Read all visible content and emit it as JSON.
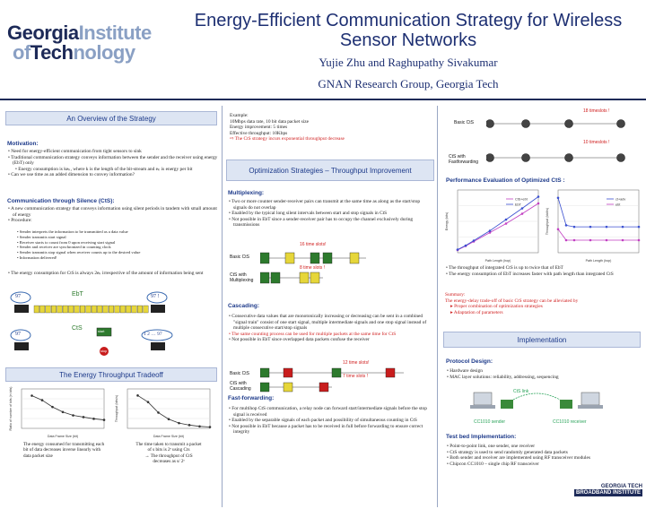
{
  "header": {
    "logo_line1": [
      "Georgia",
      "Institute"
    ],
    "logo_line2": [
      "of",
      "Tech",
      "nology"
    ],
    "title": "Energy-Efficient Communication Strategy for Wireless Sensor Networks",
    "authors": "Yujie Zhu and Raghupathy Sivakumar",
    "group": "GNAN Research Group, Georgia Tech"
  },
  "left": {
    "overview_banner": "An Overview of the Strategy",
    "motivation_heading": "Motivation:",
    "motivation_items": [
      "Need for energy-efficient communication from tight sensors to sink",
      "Traditional communication strategy conveys information between the sender and the receiver using energy (EbT) only",
      "Energy consumption is keₖ, where k is the length of the bit-stream and eₖ is energy per bit",
      "Can we use time as an added dimension to convey information?"
    ],
    "cts_heading": "Communication through Silence (CtS):",
    "cts_items": [
      "A new communication strategy that conveys information using silent periods in tandem with small amount of energy",
      "Procedure:"
    ],
    "procedure_items": [
      "Sender interprets the information to be transmitted as a data value",
      "Sender transmits start signal",
      "Receiver starts to count from 0 upon receiving start signal",
      "Sender and receiver are synchronized in counting clock",
      "Sender transmits stop signal when receiver counts up to the desired value",
      "Information delivered!"
    ],
    "cts_energy": "The energy consumption for CtS is always 2eₖ irrespective of the amount of information being sent",
    "diagram": {
      "node_value": "97",
      "node_value_out": "97 !",
      "ebt_label": "EbT",
      "cts_label": "CtS",
      "count_label": "1 2 … 97",
      "start_label": "start",
      "stop_label": "stop"
    },
    "tradeoff_banner": "The Energy Throughput Tradeoff",
    "chart1_xlabel": "Data Frame Size (bit)",
    "chart1_ylabel": "Ratio of number of bits (in bits)",
    "chart2_xlabel": "Data Frame Size (bit)",
    "chart2_ylabel": "Throughput (bits/s)",
    "caption1": "The energy consumed for transmitting each bit of data decreases inverse linearly with data packet size",
    "caption2_lines": [
      "The time taken to transmit a packet",
      "of s bits is 2ˢ using Cts",
      "→ The throughput of CtS",
      "decreases as s/ 2ˢ"
    ]
  },
  "middle": {
    "example_lines": [
      "Example:",
      "10Mbps data rate, 10 bit data packet size",
      "Energy improvement: 5 times",
      "Effective throughput: 10Kbps"
    ],
    "example_warning": "The CtS strategy incurs exponential throughput decrease",
    "optim_banner": "Optimization Strategies – Throughput Improvement",
    "multiplexing_heading": "Multiplexing:",
    "multiplexing_items": [
      "Two or more counter sender-receiver pairs can transmit at the same time as along as the start/stop signals do not overlap",
      "Enabled by the typical long silent intervals between start and stop signals in CtS",
      "Not possible in EbT since a sender-receiver pair has to occupy the channel exclusively during transmissions"
    ],
    "mux_top_label": "16 time slots!",
    "mux_bottom_label": "8 time slots !",
    "mux_row1": "Basic CtS",
    "mux_row2": "CtS with Multiplexing",
    "cascading_heading": "Cascading:",
    "cascading_items": [
      "Consecutive data values that are monotonically increasing or decreasing can be sent in a combined \"signal train\" consist of one start signal, multiple intermediate signals and one stop signal instead of multiple consecutive start/stop signals",
      "The same counting process can be used for multiple packets at the same time for CtS",
      "Not possible in EbT since overlapped data packets confuse the receiver"
    ],
    "casc_top_label": "12 time slots!",
    "casc_bottom_label": "7 time slots !",
    "casc_row1": "Basic CtS",
    "casc_row2": "CtS with Cascading",
    "fastfwd_heading": "Fast-forwarding:",
    "fastfwd_items": [
      "For multihop CtS communication, a relay node can forward start/intermediate signals before the stop signal is received",
      "Enabled by the separable signals of each packet and possibility of simultaneous counting in CtS",
      "Not possible in EbT because a packet has to be received in full before forwarding to ensure correct integrity"
    ]
  },
  "right": {
    "ff_top_label": "18 timeslots !",
    "ff_mid_label": "10 timeslots !",
    "ff_row1": "Basic CtS",
    "ff_row2": "CtS with Fastforwarding",
    "perf_heading": "Performance Evaluation of Optimized CtS :",
    "perf_chart1_xlabel": "Path Length (hop)",
    "perf_chart1_ylabel": "Energy (bits)",
    "perf_chart2_xlabel": "Path Length (hop)",
    "perf_chart2_ylabel": "Throughput (kbit/s)",
    "perf_legend1": [
      "CtS+ebt",
      "EbT"
    ],
    "perf_legend2": [
      "ct+adv",
      "ebt"
    ],
    "perf_items": [
      "The throughput of integrated CtS is up to twice that of EbT",
      "The energy consumption of EbT increases faster with path length than integrated CtS"
    ],
    "summary_lines": [
      "Summary:",
      "The energy-delay trade-off of basic CtS strategy can be alleviated by"
    ],
    "summary_items": [
      "Proper combination of optimization strategies",
      "Adaptation of parameters"
    ],
    "impl_banner": "Implementation",
    "protocol_heading": "Protocol Design:",
    "protocol_items": [
      "Hardware design",
      "MAC layer solutions: reliability, addressing, sequencing"
    ],
    "testbed_label_link": "CtS link",
    "testbed_sender": "CC1010 sender",
    "testbed_receiver": "CC1010 receiver",
    "testbed_heading": "Test bed Implementation:",
    "testbed_items": [
      "Point-to-point link, one sender, one receiver",
      "CtS strategy is used to send randomly generated data packets",
      "Both sender and receiver are implemented using RF transceiver modules",
      "Chipcon CC1010 – single chip RF transceiver"
    ],
    "footer_logo": [
      "GEORGIA TECH",
      "BROADBAND INSTITUTE"
    ]
  },
  "chart_data": [
    {
      "type": "line",
      "title": "",
      "xlabel": "Data Frame Size (bit)",
      "ylabel": "Ratio of number of bits (in bits)",
      "x": [
        2,
        4,
        6,
        8,
        10,
        12,
        14,
        16
      ],
      "series": [
        {
          "values": [
            0.58,
            0.5,
            0.38,
            0.29,
            0.23,
            0.2,
            0.17,
            0.15
          ]
        }
      ],
      "ylim": [
        0,
        0.7
      ],
      "xlim": [
        0,
        16
      ]
    },
    {
      "type": "line",
      "title": "",
      "xlabel": "Data Frame Size (bit)",
      "ylabel": "Throughput (bits/s)",
      "x": [
        2,
        4,
        6,
        8,
        10,
        12,
        14,
        16
      ],
      "series": [
        {
          "values": [
            0.25,
            0.2,
            0.12,
            0.07,
            0.04,
            0.025,
            0.015,
            0.01
          ]
        }
      ],
      "ylim": [
        0,
        0.3
      ],
      "xlim": [
        0,
        16
      ]
    },
    {
      "type": "line",
      "title": "",
      "xlabel": "Path Length (hop)",
      "ylabel": "Energy (bits)",
      "x": [
        0,
        5,
        10,
        20,
        30,
        40,
        50
      ],
      "series": [
        {
          "name": "CtS+ebt",
          "values": [
            600,
            1500,
            2500,
            4500,
            6500,
            8700,
            11000
          ]
        },
        {
          "name": "EbT",
          "values": [
            700,
            1600,
            2700,
            4900,
            7400,
            9900,
            12500
          ]
        }
      ],
      "ylim": [
        0,
        14000
      ]
    },
    {
      "type": "line",
      "title": "",
      "xlabel": "Path Length (hop)",
      "ylabel": "Throughput (kbit/s)",
      "x": [
        0,
        5,
        10,
        20,
        30,
        40,
        50
      ],
      "series": [
        {
          "name": "ct+adv",
          "values": [
            0.7,
            0.35,
            0.33,
            0.33,
            0.33,
            0.33,
            0.33
          ]
        },
        {
          "name": "ebt",
          "values": [
            0.3,
            0.16,
            0.16,
            0.16,
            0.16,
            0.16,
            0.16
          ]
        }
      ],
      "ylim": [
        0,
        0.8
      ]
    }
  ]
}
